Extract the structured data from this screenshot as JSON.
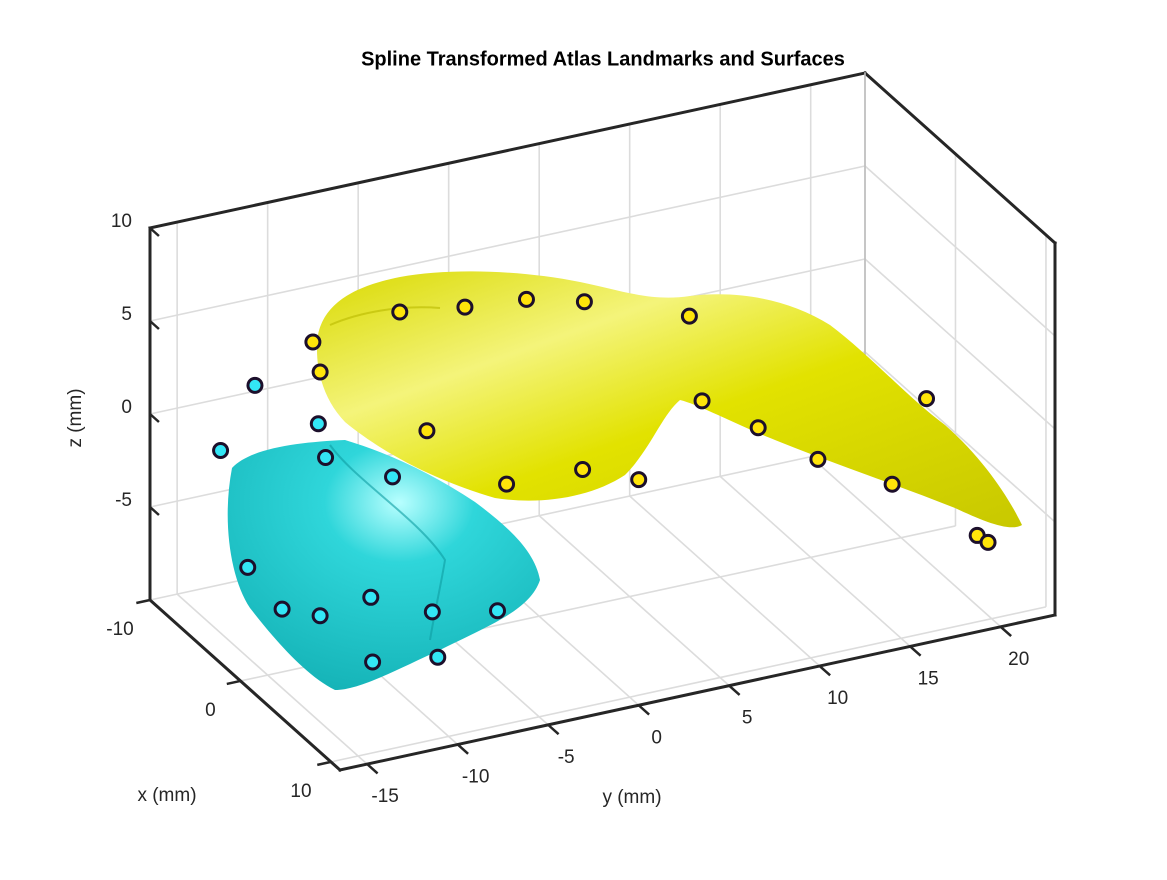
{
  "chart_data": {
    "type": "scatter3d",
    "title": "Spline Transformed Atlas Landmarks and Surfaces",
    "xlabel": "x (mm)",
    "ylabel": "y (mm)",
    "zlabel": "z (mm)",
    "xlim": [
      -10,
      11
    ],
    "ylim": [
      -16.5,
      23
    ],
    "zlim": [
      -10,
      10
    ],
    "xticks": [
      -10,
      0,
      10
    ],
    "yticks": [
      -15,
      -10,
      -5,
      0,
      5,
      10,
      15,
      20
    ],
    "zticks": [
      -5,
      0,
      5,
      10
    ],
    "grid": true,
    "box": true,
    "series": [
      {
        "color": "#33e6f6",
        "x": [
          -3,
          -3,
          -3,
          -3,
          0,
          -3,
          3,
          3,
          3,
          3,
          3,
          3,
          3
        ],
        "y": [
          -14.2,
          -16.1,
          -10.7,
          -10.3,
          -8.1,
          -14.6,
          -15.7,
          -13.6,
          -10.8,
          -7.4,
          -3.8,
          -10.7,
          -7.1
        ],
        "z": [
          4.1,
          1.0,
          1.3,
          -0.6,
          -0.8,
          -5.6,
          -5.0,
          -5.8,
          -5.4,
          -6.9,
          -7.6,
          -8.9,
          -9.4
        ]
      },
      {
        "color": "#ffe40a",
        "x": [
          -2,
          -2,
          -2,
          -2,
          -2,
          -2,
          -2,
          -2,
          -2,
          -2,
          -2,
          -2,
          -2,
          -2,
          -2,
          -2,
          4,
          4
        ],
        "y": [
          -11.5,
          -11.1,
          -6.7,
          -3.1,
          0.3,
          3.5,
          9.3,
          -5.2,
          -0.8,
          3.4,
          6.5,
          10.0,
          13.1,
          16.4,
          20.5,
          22.4,
          22.2,
          22.8
        ],
        "z": [
          6.3,
          4.6,
          6.9,
          6.4,
          6.1,
          5.3,
          3.3,
          0.2,
          -3.6,
          -3.7,
          -4.9,
          -1.4,
          -3.5,
          -5.9,
          -8.1,
          -3.9,
          -8.6,
          -9.1
        ]
      }
    ]
  }
}
